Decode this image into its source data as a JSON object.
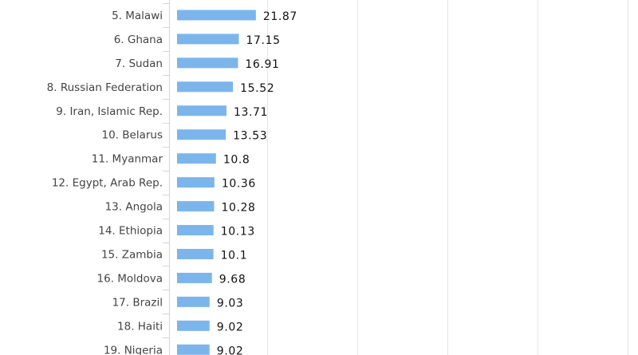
{
  "chart_data": {
    "type": "bar",
    "orientation": "horizontal",
    "categories": [
      "5. Malawi",
      "6. Ghana",
      "7. Sudan",
      "8. Russian Federation",
      "9. Iran, Islamic Rep.",
      "10. Belarus",
      "11. Myanmar",
      "12. Egypt, Arab Rep.",
      "13. Angola",
      "14. Ethiopia",
      "15. Zambia",
      "16. Moldova",
      "17. Brazil",
      "18. Haiti",
      "19. Nigeria"
    ],
    "values": [
      21.87,
      17.15,
      16.91,
      15.52,
      13.71,
      13.53,
      10.8,
      10.36,
      10.28,
      10.13,
      10.1,
      9.68,
      9.03,
      9.02,
      9.02
    ],
    "value_labels": [
      "21.87",
      "17.15",
      "16.91",
      "15.52",
      "13.71",
      "13.53",
      "10.8",
      "10.36",
      "10.28",
      "10.13",
      "10.1",
      "9.68",
      "9.03",
      "9.02",
      "9.02"
    ],
    "xlim": [
      0,
      125
    ],
    "grid": true,
    "colors": {
      "bar": "#7cb5ec",
      "gridline": "#e6e6e6",
      "axis": "#ccd6eb",
      "category_text": "#444444",
      "value_text": "#111111"
    }
  }
}
